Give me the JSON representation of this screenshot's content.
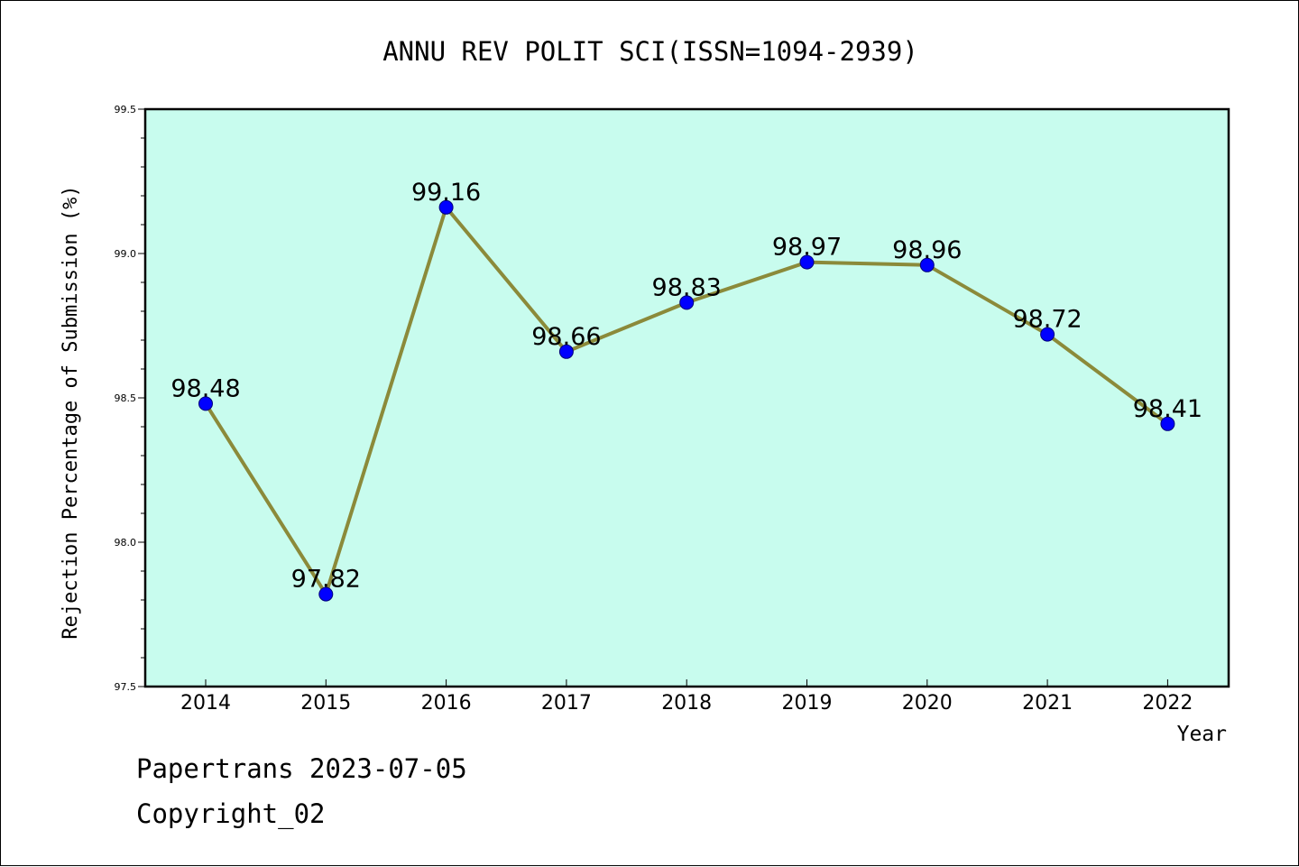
{
  "chart_data": {
    "type": "line",
    "title": "ANNU REV POLIT SCI(ISSN=1094-2939)",
    "xlabel": "Year",
    "ylabel": "Rejection Percentage of Submission (%)",
    "x": [
      "2014",
      "2015",
      "2016",
      "2017",
      "2018",
      "2019",
      "2020",
      "2021",
      "2022"
    ],
    "values": [
      98.48,
      97.82,
      99.16,
      98.66,
      98.83,
      98.97,
      98.96,
      98.72,
      98.41
    ],
    "data_labels": [
      "98.48",
      "97.82",
      "99.16",
      "98.66",
      "98.83",
      "98.97",
      "98.96",
      "98.72",
      "98.41"
    ],
    "ylim": [
      97.5,
      99.5
    ],
    "yticks": [
      "97.5",
      "98.0",
      "98.5",
      "99.0",
      "99.5"
    ],
    "grid": false,
    "colors": {
      "plot_background": "#c8fcee",
      "line": "#8b8a3a",
      "marker": "#0000ff"
    }
  },
  "footer": {
    "line1": "Papertrans 2023-07-05",
    "line2": "Copyright_02"
  }
}
